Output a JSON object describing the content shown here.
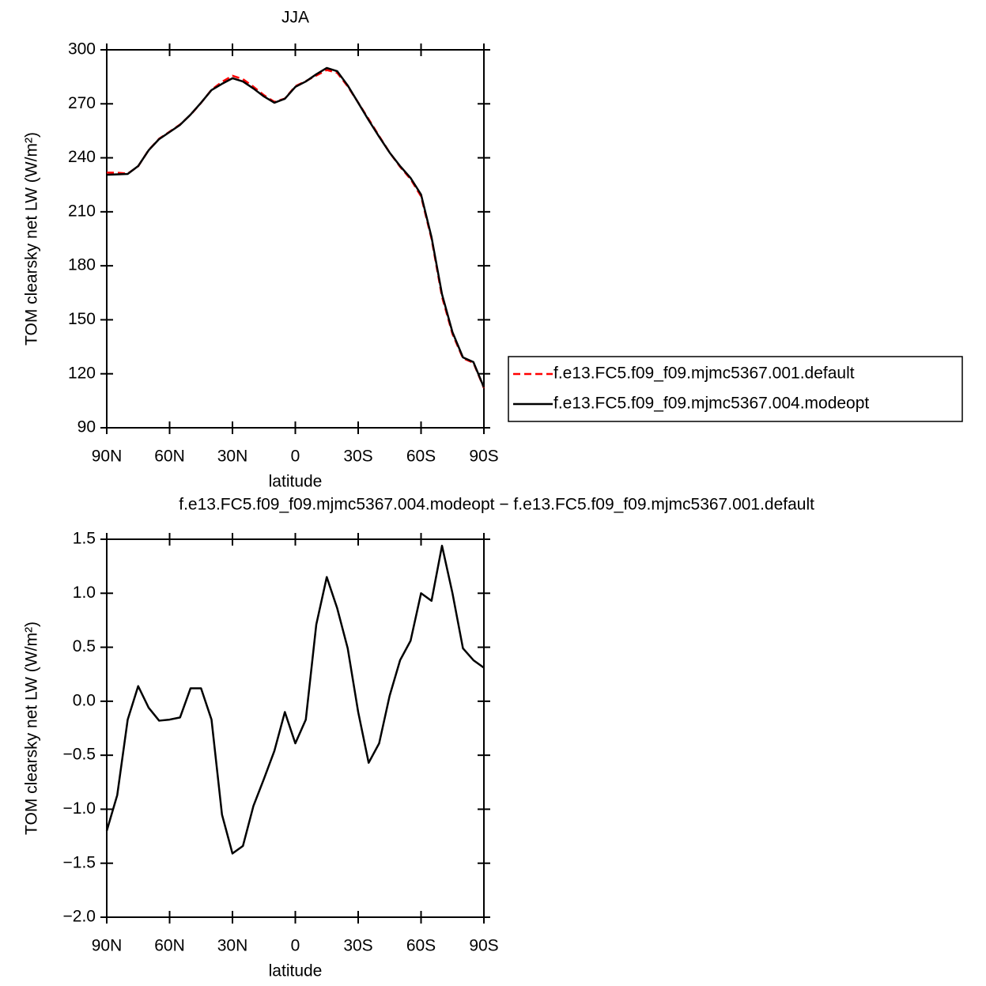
{
  "chart_data": [
    {
      "type": "line",
      "title": "JJA",
      "xlabel": "latitude",
      "ylabel": "TOM clearsky net LW (W/m²)",
      "x": [
        90,
        85,
        80,
        75,
        70,
        65,
        60,
        55,
        50,
        45,
        40,
        35,
        30,
        25,
        20,
        15,
        10,
        5,
        0,
        -5,
        -10,
        -15,
        -20,
        -25,
        -30,
        -35,
        -40,
        -45,
        -50,
        -55,
        -60,
        -65,
        -70,
        -75,
        -80,
        -85,
        -90
      ],
      "series": [
        {
          "name": "f.e13.FC5.f09_f09.mjmc5367.001.default",
          "color": "#ff0000",
          "line_style": "dashed",
          "values": [
            231.8,
            231.7,
            231.2,
            235.3,
            244.3,
            250.6,
            254.5,
            258.5,
            263.9,
            270.5,
            277.8,
            282.2,
            285.6,
            283.7,
            279.5,
            274.8,
            271.1,
            272.9,
            279.8,
            282.6,
            285.7,
            288.8,
            287.2,
            279.7,
            270.7,
            261.5,
            252.1,
            242.9,
            235.0,
            228.2,
            218.6,
            195.0,
            162.8,
            142.1,
            128.6,
            126.1,
            112.1
          ]
        },
        {
          "name": "f.e13.FC5.f09_f09.mjmc5367.004.modeopt",
          "color": "#000000",
          "line_style": "solid",
          "values": [
            230.6,
            230.8,
            231.0,
            235.4,
            244.2,
            250.4,
            254.3,
            258.3,
            264.0,
            270.6,
            277.6,
            281.1,
            284.2,
            282.4,
            278.5,
            274.1,
            270.6,
            272.8,
            279.4,
            282.4,
            286.4,
            289.9,
            288.1,
            280.2,
            270.6,
            260.9,
            251.7,
            242.9,
            235.4,
            228.8,
            219.6,
            195.9,
            164.2,
            143.1,
            129.1,
            126.5,
            112.4
          ]
        }
      ],
      "xlim": [
        90,
        -90
      ],
      "xticks": [
        {
          "value": 90,
          "label": "90N"
        },
        {
          "value": 60,
          "label": "60N"
        },
        {
          "value": 30,
          "label": "30N"
        },
        0,
        {
          "value": -30,
          "label": "30S"
        },
        {
          "value": -60,
          "label": "60S"
        },
        {
          "value": -90,
          "label": "90S"
        }
      ],
      "ylim": [
        90,
        300
      ],
      "yticks": [
        90,
        120,
        150,
        180,
        210,
        240,
        270,
        300
      ],
      "legend": "right"
    },
    {
      "type": "line",
      "title": "f.e13.FC5.f09_f09.mjmc5367.004.modeopt − f.e13.FC5.f09_f09.mjmc5367.001.default",
      "xlabel": "latitude",
      "ylabel": "TOM clearsky net LW (W/m²)",
      "x": [
        90,
        85,
        80,
        75,
        70,
        65,
        60,
        55,
        50,
        45,
        40,
        35,
        30,
        25,
        20,
        15,
        10,
        5,
        0,
        -5,
        -10,
        -15,
        -20,
        -25,
        -30,
        -35,
        -40,
        -45,
        -50,
        -55,
        -60,
        -65,
        -70,
        -75,
        -80,
        -85,
        -90
      ],
      "values": [
        -1.2,
        -0.87,
        -0.17,
        0.14,
        -0.06,
        -0.18,
        -0.17,
        -0.15,
        0.12,
        0.12,
        -0.17,
        -1.05,
        -1.41,
        -1.34,
        -0.97,
        -0.72,
        -0.46,
        -0.1,
        -0.39,
        -0.17,
        0.71,
        1.15,
        0.86,
        0.49,
        -0.1,
        -0.57,
        -0.39,
        0.05,
        0.38,
        0.56,
        1.0,
        0.93,
        1.44,
        1.0,
        0.49,
        0.38,
        0.31
      ],
      "color": "#000000",
      "xlim": [
        90,
        -90
      ],
      "xticks": [
        {
          "value": 90,
          "label": "90N"
        },
        {
          "value": 60,
          "label": "60N"
        },
        {
          "value": 30,
          "label": "30N"
        },
        0,
        {
          "value": -30,
          "label": "30S"
        },
        {
          "value": -60,
          "label": "60S"
        },
        {
          "value": -90,
          "label": "90S"
        }
      ],
      "ylim": [
        -2.0,
        1.5
      ],
      "yticks": [
        {
          "value": -2,
          "label": "−2.0"
        },
        {
          "value": -1.5,
          "label": "−1.5"
        },
        {
          "value": -1,
          "label": "−1.0"
        },
        {
          "value": -0.5,
          "label": "−0.5"
        },
        {
          "value": 0,
          "label": "0.0"
        },
        {
          "value": 0.5,
          "label": "0.5"
        },
        {
          "value": 1,
          "label": "1.0"
        },
        {
          "value": 1.5,
          "label": "1.5"
        }
      ]
    }
  ]
}
